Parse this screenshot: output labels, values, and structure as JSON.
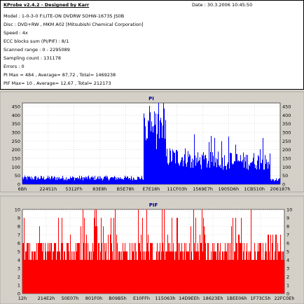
{
  "header": {
    "title": "KProbe v2.4.2 - Designed by Karr",
    "date_label": "Date : 30.3.2006 10:45:50"
  },
  "info_lines": [
    "Model : 1-0-3-0 F:LITE-ON DVDRW SOHW-1673S JS0B",
    "Disc : DVD+RW , MKM A02 [Mitsubishi Chemical Corporation]",
    "Speed : 4x",
    "ECC blocks sum (PI/PIF) : 8/1",
    "Scanned range : 0 - 2295089",
    "Sampling count : 131178",
    "Errors : 0",
    "PI Max = 484 , Average= 87,72 , Total= 1469238",
    "PIF Max= 10 , Average= 12,67 , Total= 212173"
  ],
  "colors": {
    "pi_bar": "#0000ff",
    "pif_bar": "#ff0000",
    "plot_bg": "#ffffff",
    "window_bg": "#d4d0c8",
    "title_text": "#00008b"
  },
  "chart_data": [
    {
      "type": "bar",
      "title": "PI",
      "xlabel": "",
      "ylabel": "",
      "ylim": [
        0,
        470
      ],
      "y_ticks": [
        0,
        50,
        100,
        150,
        200,
        250,
        300,
        350,
        400,
        450
      ],
      "x_tick_labels": [
        "6Bh",
        "22451h",
        "5312Fh",
        "83E8h",
        "B5E78h",
        "E7E18h",
        "11CF03h",
        "1569E7h",
        "1905D6h",
        "1CB510h",
        "206187h"
      ],
      "grid": true,
      "series": [
        {
          "segments": [
            {
              "from": 0.0,
              "to": 0.47,
              "value": 40
            },
            {
              "from": 0.47,
              "to": 0.555,
              "value": 350
            },
            {
              "from": 0.555,
              "to": 0.65,
              "value": 175
            },
            {
              "from": 0.65,
              "to": 0.96,
              "value": 150
            },
            {
              "from": 0.96,
              "to": 1.0,
              "value": 30
            }
          ],
          "max": 484
        }
      ]
    },
    {
      "type": "bar",
      "title": "PIF",
      "xlabel": "",
      "ylabel": "",
      "ylim": [
        0,
        10
      ],
      "y_ticks": [
        0,
        1,
        2,
        3,
        4,
        5,
        6,
        7,
        8,
        9,
        10
      ],
      "x_tick_labels": [
        "12h",
        "214E2h",
        "50E07h",
        "801F0h",
        "B09B5h",
        "E10FFh",
        "115063h",
        "14D9EEh",
        "18623Eh",
        "1BEE06h",
        "1F73C5h",
        "22FC0Eh"
      ],
      "grid": true,
      "series": [
        {
          "segments": [
            {
              "from": 0.0,
              "to": 1.0,
              "value": 5.5
            }
          ],
          "max": 10
        }
      ]
    }
  ]
}
